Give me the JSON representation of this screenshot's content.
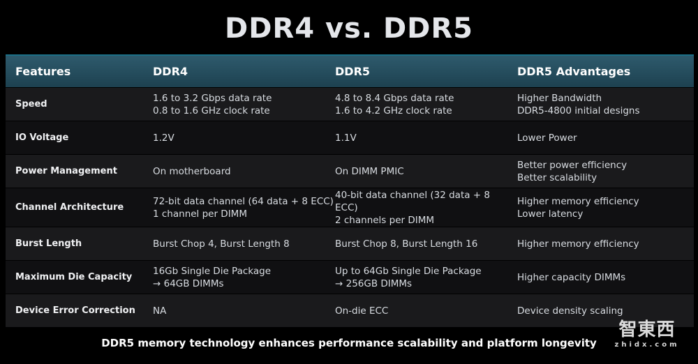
{
  "title": "DDR4 vs. DDR5",
  "table": {
    "headers": [
      "Features",
      "DDR4",
      "DDR5",
      "DDR5 Advantages"
    ],
    "rows": [
      {
        "feature": "Speed",
        "ddr4": [
          "1.6 to 3.2 Gbps data rate",
          "0.8 to 1.6 GHz clock rate"
        ],
        "ddr5": [
          "4.8 to 8.4 Gbps data rate",
          "1.6 to 4.2 GHz clock rate"
        ],
        "adv": [
          "Higher Bandwidth",
          "DDR5-4800 initial designs"
        ]
      },
      {
        "feature": "IO Voltage",
        "ddr4": [
          "1.2V"
        ],
        "ddr5": [
          "1.1V"
        ],
        "adv": [
          "Lower Power"
        ]
      },
      {
        "feature": "Power Management",
        "ddr4": [
          "On motherboard"
        ],
        "ddr5": [
          "On DIMM PMIC"
        ],
        "adv": [
          "Better power efficiency",
          "Better scalability"
        ]
      },
      {
        "feature": "Channel Architecture",
        "ddr4": [
          "72-bit data channel (64 data + 8 ECC)",
          "1 channel per DIMM"
        ],
        "ddr5": [
          "40-bit data channel (32 data + 8 ECC)",
          "2 channels per DIMM"
        ],
        "adv": [
          "Higher memory efficiency",
          "Lower latency"
        ]
      },
      {
        "feature": "Burst Length",
        "ddr4": [
          "Burst Chop 4, Burst Length 8"
        ],
        "ddr5": [
          "Burst Chop 8, Burst Length 16"
        ],
        "adv": [
          "Higher memory efficiency"
        ]
      },
      {
        "feature": "Maximum Die Capacity",
        "ddr4": [
          "16Gb Single Die Package",
          "→ 64GB DIMMs"
        ],
        "ddr5": [
          "Up to 64Gb Single Die Package",
          "→ 256GB DIMMs"
        ],
        "adv": [
          "Higher capacity DIMMs"
        ]
      },
      {
        "feature": "Device Error Correction",
        "ddr4": [
          "NA"
        ],
        "ddr5": [
          "On-die ECC"
        ],
        "adv": [
          "Device density scaling"
        ]
      }
    ]
  },
  "footer": "DDR5 memory technology enhances performance scalability and platform longevity",
  "watermark": {
    "main": "智東西",
    "sub": "zhidx.com"
  }
}
